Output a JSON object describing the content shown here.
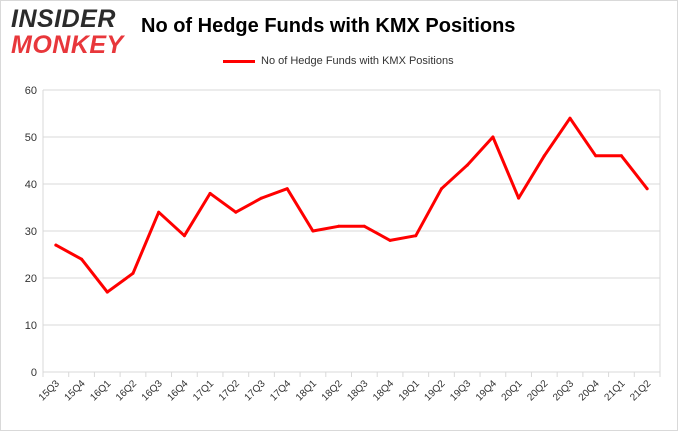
{
  "logo": {
    "line1": "INSIDER",
    "line2": "MONKEY"
  },
  "colors": {
    "series": "#ff0000",
    "grid": "#d9d9d9",
    "logo_red": "#e8373b"
  },
  "chart_data": {
    "type": "line",
    "title": "No of Hedge Funds with KMX Positions",
    "xlabel": "",
    "ylabel": "",
    "ylim": [
      0,
      60
    ],
    "yticks": [
      0,
      10,
      20,
      30,
      40,
      50,
      60
    ],
    "grid": true,
    "legend_position": "top-center",
    "categories": [
      "15Q3",
      "15Q4",
      "16Q1",
      "16Q2",
      "16Q3",
      "16Q4",
      "17Q1",
      "17Q2",
      "17Q3",
      "17Q4",
      "18Q1",
      "18Q2",
      "18Q3",
      "18Q4",
      "19Q1",
      "19Q2",
      "19Q3",
      "19Q4",
      "20Q1",
      "20Q2",
      "20Q3",
      "20Q4",
      "21Q1",
      "21Q2"
    ],
    "series": [
      {
        "name": "No of Hedge Funds with KMX Positions",
        "color": "#ff0000",
        "values": [
          27,
          24,
          17,
          21,
          34,
          29,
          38,
          34,
          37,
          39,
          30,
          31,
          31,
          28,
          29,
          39,
          44,
          50,
          37,
          46,
          54,
          46,
          46,
          39
        ]
      }
    ]
  }
}
